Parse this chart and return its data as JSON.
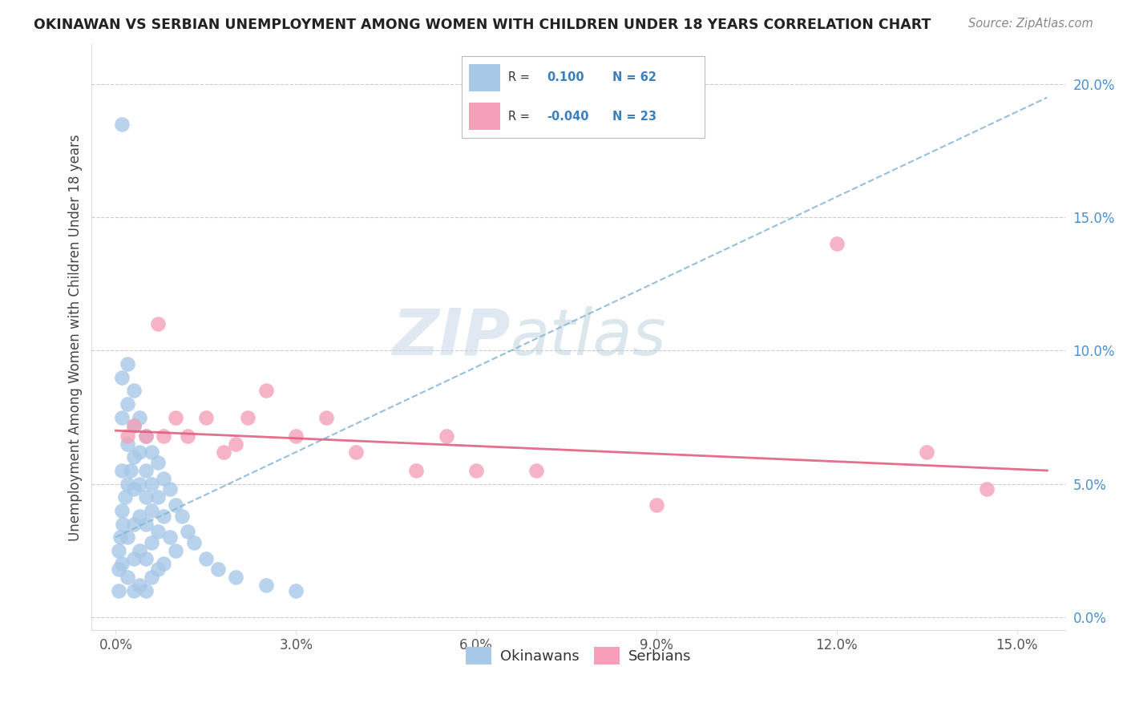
{
  "title": "OKINAWAN VS SERBIAN UNEMPLOYMENT AMONG WOMEN WITH CHILDREN UNDER 18 YEARS CORRELATION CHART",
  "source": "Source: ZipAtlas.com",
  "ylabel": "Unemployment Among Women with Children Under 18 years",
  "xlim": [
    -0.004,
    0.158
  ],
  "ylim": [
    -0.005,
    0.215
  ],
  "x_ticks": [
    0.0,
    0.03,
    0.06,
    0.09,
    0.12,
    0.15
  ],
  "x_tick_labels": [
    "0.0%",
    "3.0%",
    "6.0%",
    "9.0%",
    "12.0%",
    "15.0%"
  ],
  "y_ticks": [
    0.0,
    0.05,
    0.1,
    0.15,
    0.2
  ],
  "y_tick_labels": [
    "0.0%",
    "5.0%",
    "10.0%",
    "15.0%",
    "20.0%"
  ],
  "okinawan_color": "#a8c8e8",
  "serbian_color": "#f4a0b8",
  "okinawan_R": 0.1,
  "okinawan_N": 62,
  "serbian_R": -0.04,
  "serbian_N": 23,
  "legend_label_1": "Okinawans",
  "legend_label_2": "Serbians",
  "watermark_zip": "ZIP",
  "watermark_atlas": "atlas",
  "trend_blue": "#8ab8d8",
  "trend_pink": "#e06080",
  "ok_x": [
    0.0005,
    0.0005,
    0.0005,
    0.0008,
    0.001,
    0.001,
    0.001,
    0.001,
    0.001,
    0.001,
    0.0012,
    0.0015,
    0.002,
    0.002,
    0.002,
    0.002,
    0.002,
    0.002,
    0.0025,
    0.003,
    0.003,
    0.003,
    0.003,
    0.003,
    0.003,
    0.003,
    0.004,
    0.004,
    0.004,
    0.004,
    0.004,
    0.004,
    0.005,
    0.005,
    0.005,
    0.005,
    0.005,
    0.005,
    0.006,
    0.006,
    0.006,
    0.006,
    0.006,
    0.007,
    0.007,
    0.007,
    0.007,
    0.008,
    0.008,
    0.008,
    0.009,
    0.009,
    0.01,
    0.01,
    0.011,
    0.012,
    0.013,
    0.015,
    0.017,
    0.02,
    0.025,
    0.03
  ],
  "ok_y": [
    0.025,
    0.018,
    0.01,
    0.03,
    0.185,
    0.09,
    0.075,
    0.055,
    0.04,
    0.02,
    0.035,
    0.045,
    0.095,
    0.08,
    0.065,
    0.05,
    0.03,
    0.015,
    0.055,
    0.085,
    0.072,
    0.06,
    0.048,
    0.035,
    0.022,
    0.01,
    0.075,
    0.062,
    0.05,
    0.038,
    0.025,
    0.012,
    0.068,
    0.055,
    0.045,
    0.035,
    0.022,
    0.01,
    0.062,
    0.05,
    0.04,
    0.028,
    0.015,
    0.058,
    0.045,
    0.032,
    0.018,
    0.052,
    0.038,
    0.02,
    0.048,
    0.03,
    0.042,
    0.025,
    0.038,
    0.032,
    0.028,
    0.022,
    0.018,
    0.015,
    0.012,
    0.01
  ],
  "se_x": [
    0.002,
    0.003,
    0.005,
    0.007,
    0.008,
    0.01,
    0.012,
    0.015,
    0.018,
    0.02,
    0.022,
    0.025,
    0.03,
    0.035,
    0.04,
    0.05,
    0.055,
    0.06,
    0.07,
    0.09,
    0.12,
    0.135,
    0.145
  ],
  "se_y": [
    0.068,
    0.072,
    0.068,
    0.11,
    0.068,
    0.075,
    0.068,
    0.075,
    0.062,
    0.065,
    0.075,
    0.085,
    0.068,
    0.075,
    0.062,
    0.055,
    0.068,
    0.055,
    0.055,
    0.042,
    0.14,
    0.062,
    0.048
  ],
  "ok_trend_x": [
    0.0,
    0.155
  ],
  "ok_trend_y": [
    0.03,
    0.195
  ],
  "se_trend_x": [
    0.0,
    0.155
  ],
  "se_trend_y": [
    0.07,
    0.055
  ]
}
